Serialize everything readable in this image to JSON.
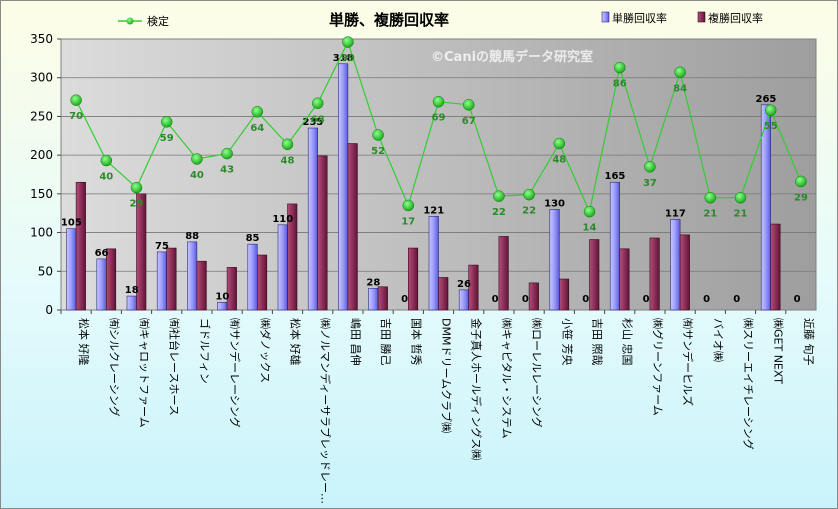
{
  "chart_data": {
    "type": "bar",
    "title": "単勝、複勝回収率",
    "watermark": "©Caniの競馬データ研究室",
    "ylim": [
      0,
      350
    ],
    "yticks": [
      0,
      50,
      100,
      150,
      200,
      250,
      300,
      350
    ],
    "grid": true,
    "legend_position": "top",
    "categories": [
      "松本 好隆",
      "㈲シルクレーシング",
      "㈲キャロットファーム",
      "㈲社台レースホース",
      "ゴドルフィン",
      "㈲サンデーレーシング",
      "㈱ダノックス",
      "松本 好雄",
      "㈱ノルマンディーサラブレッドレー…",
      "嶋田 昌伸",
      "吉田 勝己",
      "国本 哲秀",
      "DMMドリームクラブ㈱",
      "金子真人ホールディングス㈱",
      "㈱キャピタル・システム",
      "㈱ローレルレーシング",
      "小笹 芳央",
      "吉田 照哉",
      "杉山 忠国",
      "㈱グリーンファーム",
      "㈲サンデーヒルズ",
      "バイオ㈱",
      "㈱スリーエイチレーシング",
      "㈱GET NEXT",
      "近藤 旬子"
    ],
    "series": [
      {
        "name": "単勝回収率",
        "type": "bar",
        "color": "#9999ff",
        "values": [
          105,
          66,
          18,
          75,
          88,
          10,
          85,
          110,
          235,
          318,
          28,
          0,
          121,
          26,
          0,
          0,
          130,
          0,
          165,
          0,
          117,
          0,
          0,
          265,
          0
        ]
      },
      {
        "name": "複勝回収率",
        "type": "bar",
        "color": "#993366",
        "values": [
          165,
          79,
          150,
          80,
          63,
          55,
          71,
          137,
          199,
          215,
          30,
          80,
          42,
          58,
          95,
          35,
          40,
          91,
          79,
          93,
          97,
          0,
          0,
          111,
          0
        ]
      },
      {
        "name": "検定",
        "type": "line",
        "color": "#33cc33",
        "values": [
          271,
          193,
          158,
          243,
          195,
          202,
          256,
          214,
          267,
          346,
          226,
          135,
          269,
          265,
          147,
          149,
          215,
          127,
          313,
          185,
          307,
          145,
          145,
          258,
          166
        ],
        "labels": [
          70,
          40,
          29,
          59,
          40,
          43,
          64,
          48,
          68,
          99,
          52,
          17,
          69,
          67,
          22,
          22,
          48,
          14,
          86,
          37,
          84,
          21,
          21,
          55,
          29
        ]
      }
    ]
  }
}
